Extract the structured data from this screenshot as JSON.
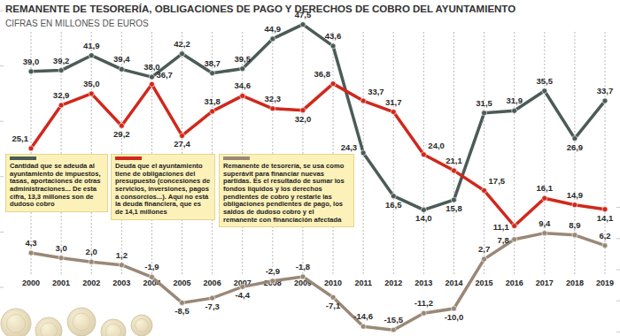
{
  "chart_data": {
    "type": "line",
    "title": "REMANENTE DE TESORERÍA, OBLIGACIONES DE PAGO Y DERECHOS DE COBRO DEL AYUNTAMIENTO",
    "subtitle": "CIFRAS EN MILLONES DE EUROS",
    "categories": [
      "2000",
      "2001",
      "2002",
      "2003",
      "2004",
      "2005",
      "2006",
      "2007",
      "2008",
      "2009",
      "2010",
      "2011",
      "2012",
      "2013",
      "2014",
      "2015",
      "2016",
      "2017",
      "2018",
      "2019"
    ],
    "series": [
      {
        "name": "Cantidad que se adeuda al ayuntamiento de impuestos, tasas, aportaciones de otras administraciones... De esta cifra, 13,3 millones son de dudoso cobro",
        "color": "#4b5b58",
        "marker": "circle",
        "line_style": "solid",
        "values": [
          39.0,
          39.2,
          41.9,
          39.4,
          38.0,
          42.2,
          38.7,
          39.5,
          44.9,
          47.5,
          43.6,
          24.3,
          16.5,
          14.0,
          15.8,
          31.5,
          31.9,
          35.5,
          26.9,
          33.7
        ],
        "value_labels": [
          "39,0",
          "39,2",
          "41,9",
          "39,4",
          "38,0",
          "42,2",
          "38,7",
          "39,5",
          "44,9",
          "47,5",
          "43,6",
          "24,3",
          "16,5",
          "14,0",
          "15,8",
          "31,5",
          "31,9",
          "35,5",
          "26,9",
          "33,7"
        ]
      },
      {
        "name": "Deuda que el ayuntamiento tiene de obligaciones del presupuesto (concesiones de servicios, inversiones, pagos a consorcios...). Aquí no está la deuda financiera, que es de 14,1 millones",
        "color": "#d0281c",
        "marker": "circle",
        "line_style": "solid",
        "values": [
          25.1,
          32.9,
          35.0,
          29.2,
          36.7,
          27.4,
          31.8,
          34.6,
          32.3,
          32.0,
          36.8,
          33.7,
          31.7,
          24.0,
          21.1,
          17.5,
          11.1,
          16.1,
          14.9,
          14.1
        ],
        "value_labels": [
          "25,1",
          "32,9",
          "35,0",
          "29,2",
          "36,7",
          "27,4",
          "31,8",
          "34,6",
          "32,3",
          "32,0",
          "36,8",
          "33,7",
          "31,7",
          "24,0",
          "21,1",
          "17,5",
          "11,1",
          "16,1",
          "14,9",
          "14,1"
        ]
      },
      {
        "name": "Remanente de tesorería, se usa como superávit para financiar nuevas partidas. Es el resultado de sumar los fondos líquidos y los derechos pendientes de cobro y restarle las obligaciones pendientes de pago, los saldos de dudoso cobro y el remanente con financiación afectada",
        "color": "#9a8877",
        "marker": "circle",
        "line_style": "solid",
        "axis": "y2",
        "values": [
          4.3,
          3.0,
          2.0,
          1.2,
          -1.9,
          -8.5,
          -7.3,
          -4.4,
          -2.9,
          -1.8,
          -7.1,
          -14.6,
          -15.5,
          -11.2,
          -10.0,
          2.7,
          7.8,
          9.4,
          8.9,
          6.2
        ],
        "value_labels": [
          "4,3",
          "3,0",
          "2,0",
          "1,2",
          "-1,9",
          "-8,5",
          "-7,3",
          "-4,4",
          "-2,9",
          "-1,8",
          "-7,1",
          "-14,6",
          "-15,5",
          "-11,2",
          "-10,0",
          "2,7",
          "7,8",
          "9,4",
          "8,9",
          "6,2"
        ]
      }
    ],
    "ylim": [
      0,
      50
    ],
    "yticks": [
      0,
      10,
      20,
      30,
      40,
      50
    ],
    "y2lim": [
      -16,
      16
    ],
    "y2ticks": [
      -16,
      -8,
      0,
      8,
      16
    ],
    "grid": true,
    "data_labels": true,
    "tick_labels": "x",
    "legend": "left"
  }
}
